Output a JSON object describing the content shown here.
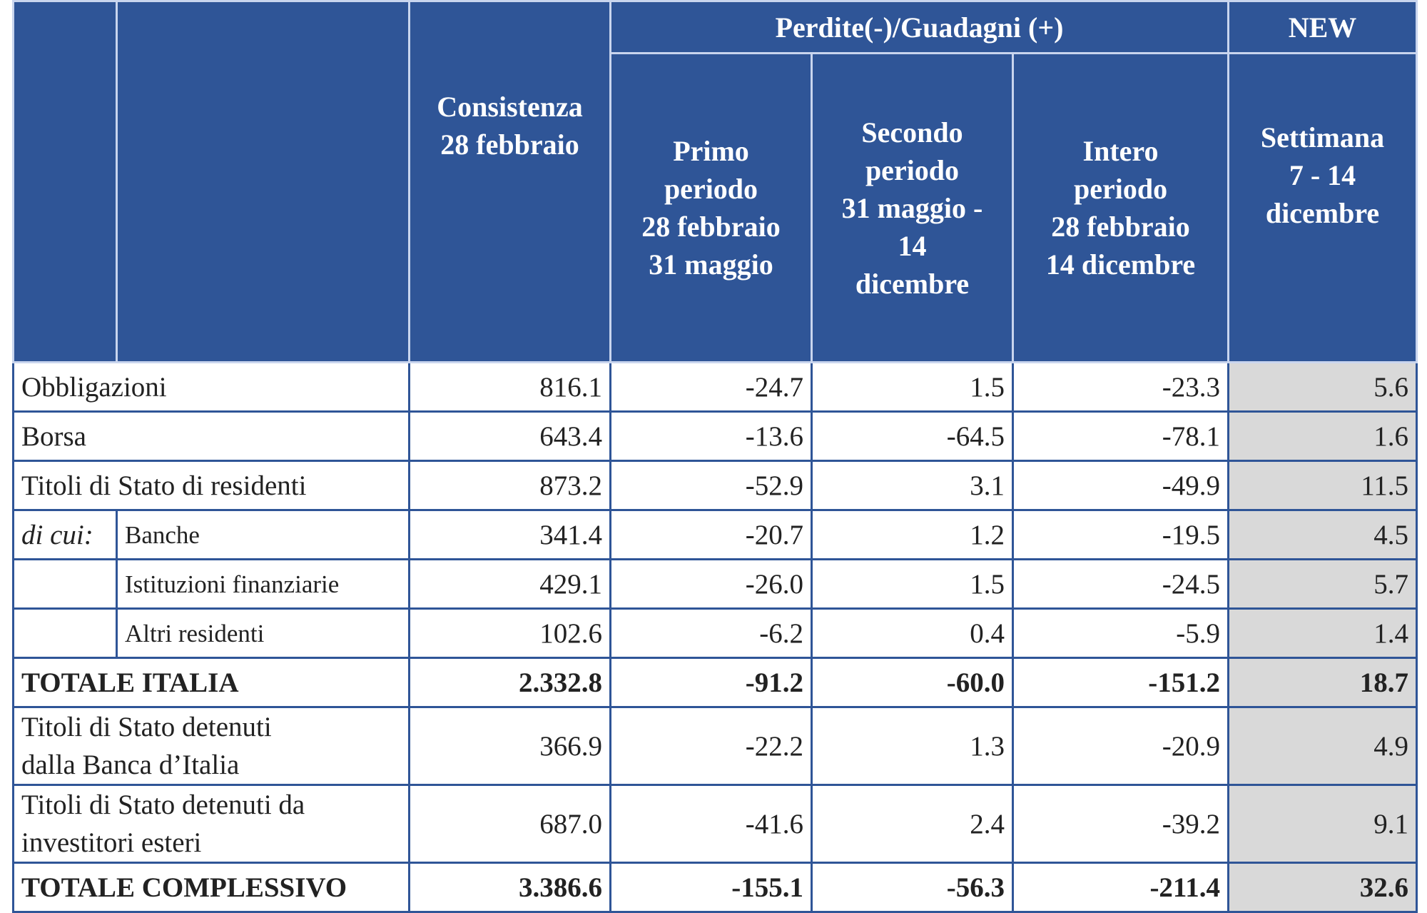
{
  "table": {
    "header": {
      "group": "Perdite(-)/Guadagni (+)",
      "new": "NEW",
      "columns": [
        "Consistenza\n28 febbraio",
        "Primo\nperiodo\n28 febbraio\n31 maggio",
        "Secondo\nperiodo\n31 maggio -\n14\ndicembre",
        "Intero\nperiodo\n28 febbraio\n14 dicembre",
        "Settimana\n7 - 14\ndicembre"
      ]
    },
    "rows": [
      {
        "label": "Obbligazioni",
        "values": [
          "816.1",
          "-24.7",
          "1.5",
          "-23.3",
          "5.6"
        ]
      },
      {
        "label": "Borsa",
        "values": [
          "643.4",
          "-13.6",
          "-64.5",
          "-78.1",
          "1.6"
        ]
      },
      {
        "label": "Titoli di Stato di residenti",
        "values": [
          "873.2",
          "-52.9",
          "3.1",
          "-49.9",
          "11.5"
        ]
      },
      {
        "prefix": "di cui:",
        "label": "Banche",
        "values": [
          "341.4",
          "-20.7",
          "1.2",
          "-19.5",
          "4.5"
        ]
      },
      {
        "label": "Istituzioni finanziarie",
        "values": [
          "429.1",
          "-26.0",
          "1.5",
          "-24.5",
          "5.7"
        ]
      },
      {
        "label": "Altri residenti",
        "values": [
          "102.6",
          "-6.2",
          "0.4",
          "-5.9",
          "1.4"
        ]
      },
      {
        "label": "TOTALE ITALIA",
        "values": [
          "2.332.8",
          "-91.2",
          "-60.0",
          "-151.2",
          "18.7"
        ]
      },
      {
        "label": "Titoli di Stato detenuti\ndalla Banca d’Italia",
        "values": [
          "366.9",
          "-22.2",
          "1.3",
          "-20.9",
          "4.9"
        ]
      },
      {
        "label": "Titoli di Stato detenuti da\ninvestitori esteri",
        "values": [
          "687.0",
          "-41.6",
          "2.4",
          "-39.2",
          "9.1"
        ]
      },
      {
        "label": "TOTALE COMPLESSIVO",
        "values": [
          "3.386.6",
          "-155.1",
          "-56.3",
          "-211.4",
          "32.6"
        ]
      }
    ]
  }
}
